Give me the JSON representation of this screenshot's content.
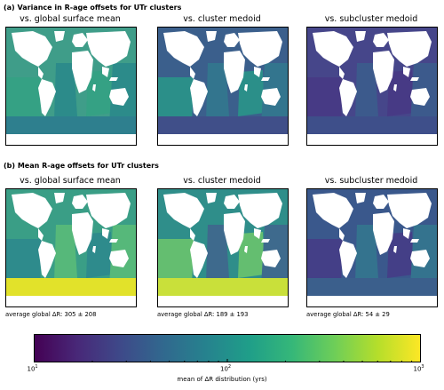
{
  "sections": {
    "a": "(a) Variance in R-age offsets for UTr clusters",
    "b": "(b) Mean R-age offsets for UTr clusters"
  },
  "panels": [
    {
      "id": "a1",
      "title": "vs. global surface mean",
      "palette": [
        "#3f9d89",
        "#2c8b8a",
        "#35a184",
        "#2e7f8e"
      ]
    },
    {
      "id": "a2",
      "title": "vs. cluster medoid",
      "palette": [
        "#3b5f8c",
        "#33758e",
        "#2b8f89",
        "#404f89"
      ]
    },
    {
      "id": "a3",
      "title": "vs. subcluster medoid",
      "palette": [
        "#46468a",
        "#3c5a8c",
        "#473a85",
        "#3e4f8a"
      ]
    },
    {
      "id": "b1",
      "title": "vs. global surface mean",
      "palette": [
        "#3a9e86",
        "#56b87a",
        "#2e8b8c",
        "#e2e22a"
      ]
    },
    {
      "id": "b2",
      "title": "vs. cluster medoid",
      "palette": [
        "#2f8e8a",
        "#3e6a8d",
        "#64be70",
        "#c9e03a"
      ]
    },
    {
      "id": "b3",
      "title": "vs. subcluster medoid",
      "palette": [
        "#3a588c",
        "#34738e",
        "#443f87",
        "#3b5f8c"
      ]
    }
  ],
  "averages": [
    "average global ΔR: 305 ± 208",
    "average global ΔR: 189 ± 193",
    "average global ΔR: 54 ± 29"
  ],
  "chart_data": {
    "type": "heatmap",
    "colorbar": {
      "label": "mean of ΔR distribution (yrs)",
      "scale": "log",
      "range": [
        10,
        1000
      ],
      "ticks": [
        {
          "base": "10",
          "exp": "1",
          "value": 10
        },
        {
          "base": "10",
          "exp": "2",
          "value": 100
        },
        {
          "base": "10",
          "exp": "3",
          "value": 1000
        }
      ],
      "colormap": [
        "#440154",
        "#482878",
        "#3e4989",
        "#31688e",
        "#26828e",
        "#1f9e89",
        "#35b779",
        "#6ece58",
        "#b5de2b",
        "#fde725"
      ]
    }
  }
}
